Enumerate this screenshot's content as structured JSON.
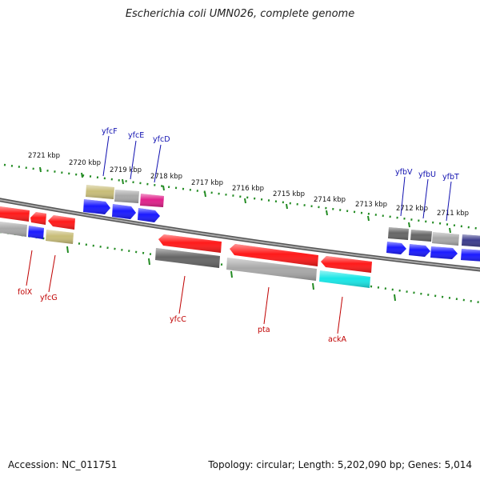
{
  "title": "Escherichia coli UMN026, complete genome",
  "footer": {
    "accession": "Accession: NC_011751",
    "summary": "Topology: circular; Length: 5,202,090 bp; Genes: 5,014"
  },
  "scale_labels": [
    "2721 kbp",
    "2720 kbp",
    "2719 kbp",
    "2718 kbp",
    "2717 kbp",
    "2716 kbp",
    "2715 kbp",
    "2714 kbp",
    "2713 kbp",
    "2712 kbp",
    "2711 kbp"
  ],
  "genes_top": [
    "yfcF",
    "yfcE",
    "yfcD",
    "yfbV",
    "yfbU",
    "yfbT"
  ],
  "genes_bottom": [
    "folX",
    "yfcG",
    "yfcC",
    "pta",
    "ackA"
  ],
  "colors": {
    "ruler": "#228b22",
    "backbone": "#7a7a7a",
    "top_label": "#1010b0",
    "bottom_label": "#c00000",
    "red": "#ff1a1a",
    "blue": "#1a1aff",
    "gray": "#a8a8a8",
    "darkgray": "#666666",
    "olive": "#c8bd78",
    "magenta": "#e0208a",
    "cyan": "#19e6e6",
    "navy": "#3c3c8c"
  }
}
